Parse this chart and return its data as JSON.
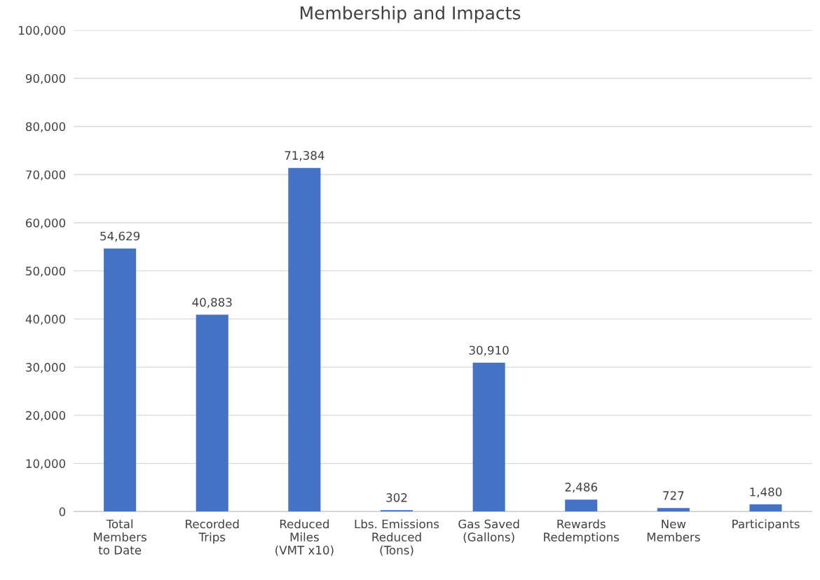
{
  "chart_data": {
    "type": "bar",
    "title": "Membership and Impacts",
    "categories": [
      "Total\nMembers\nto Date",
      "Recorded\nTrips",
      "Reduced\nMiles\n(VMT x10)",
      "Lbs. Emissions\nReduced\n(Tons)",
      "Gas Saved\n(Gallons)",
      "Rewards\nRedemptions",
      "New\nMembers",
      "Participants"
    ],
    "values": [
      54629,
      40883,
      71384,
      302,
      30910,
      2486,
      727,
      1480
    ],
    "value_labels": [
      "54,629",
      "40,883",
      "71,384",
      "302",
      "30,910",
      "2,486",
      "727",
      "1,480"
    ],
    "color": "#4472c4",
    "ylim": [
      0,
      100000
    ],
    "yticks": [
      {
        "value": 0,
        "label": "0"
      },
      {
        "value": 10000,
        "label": "10,000"
      },
      {
        "value": 20000,
        "label": "20,000"
      },
      {
        "value": 30000,
        "label": "30,000"
      },
      {
        "value": 40000,
        "label": "40,000"
      },
      {
        "value": 50000,
        "label": "50,000"
      },
      {
        "value": 60000,
        "label": "60,000"
      },
      {
        "value": 70000,
        "label": "70,000"
      },
      {
        "value": 80000,
        "label": "80,000"
      },
      {
        "value": 90000,
        "label": "90,000"
      },
      {
        "value": 100000,
        "label": "100,000"
      }
    ],
    "grid": "y"
  }
}
